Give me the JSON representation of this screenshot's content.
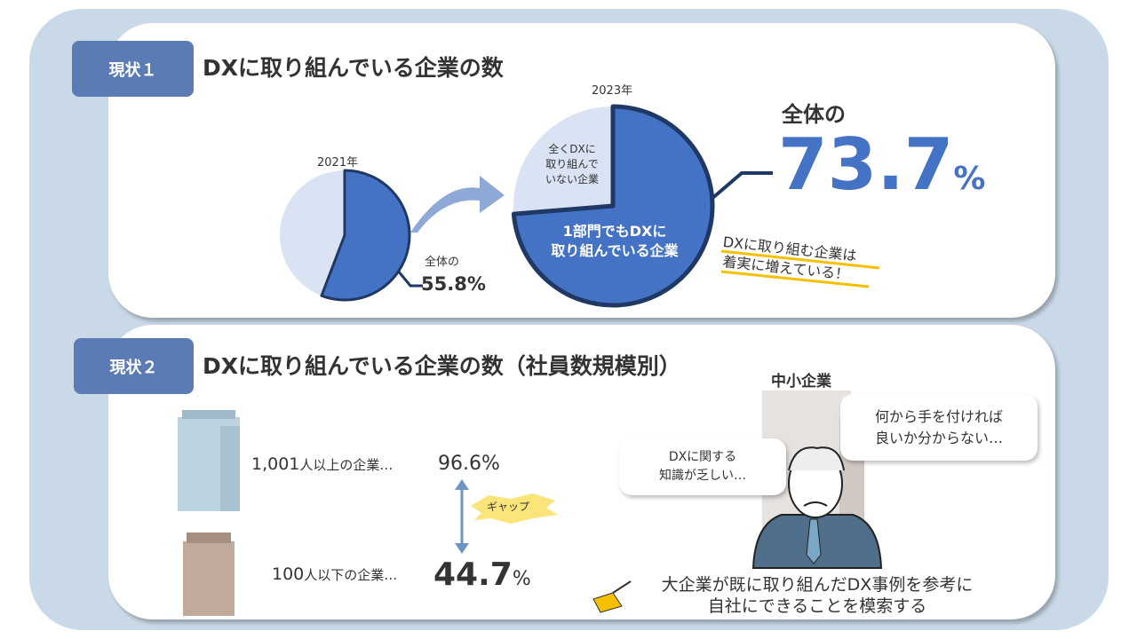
{
  "section1": {
    "tag": "現状１",
    "title": "DXに取り組んでいる企業の数",
    "year_2021": "2021年",
    "year_2023": "2023年",
    "label_2021_prefix": "全体の",
    "label_2021_value": "55.8%",
    "not_doing_label": [
      "全くDXに",
      "取り組んで",
      "いない企業"
    ],
    "doing_label": [
      "1部門でもDXに",
      "取り組んでいる企業"
    ],
    "big_prefix": "全体の",
    "big_value": "73.7",
    "big_unit": "%",
    "note": [
      "DXに取り組む企業は",
      "着実に増えている！"
    ]
  },
  "chart_data": [
    {
      "type": "pie",
      "title": "2021年",
      "slices": [
        {
          "value": 55.8,
          "color": "#4472c4"
        },
        {
          "value": 44.2,
          "color": "#dae3f3"
        }
      ]
    },
    {
      "type": "pie",
      "title": "2023年",
      "slices": [
        {
          "label": "1部門でもDXに取り組んでいる企業",
          "value": 73.7,
          "color": "#4472c4"
        },
        {
          "label": "全くDXに取り組んでいない企業",
          "value": 26.3,
          "color": "#dae3f3"
        }
      ]
    }
  ],
  "section2": {
    "tag": "現状２",
    "title": "DXに取り組んでいる企業の数（社員数規模別）",
    "large_label_num": "1,001",
    "large_label_text": "人以上の企業…",
    "large_value": "96.6%",
    "small_label_num": "100",
    "small_label_text": "人以下の企業…",
    "small_value": "44.7",
    "small_unit": "%",
    "gap": "ギャップ",
    "sme": "中小企業",
    "bubble_left": [
      "DXに関する",
      "知識が乏しい…"
    ],
    "bubble_right": [
      "何から手を付ければ",
      "良いか分からない…"
    ],
    "conclusion": [
      "大企業が既に取り組んだDX事例を参考に",
      "自社にできることを模索する"
    ]
  },
  "colors": {
    "accent": "#4472c4",
    "navy": "#1f3864",
    "tag": "#5b7bb4",
    "highlight": "#f5c000"
  }
}
